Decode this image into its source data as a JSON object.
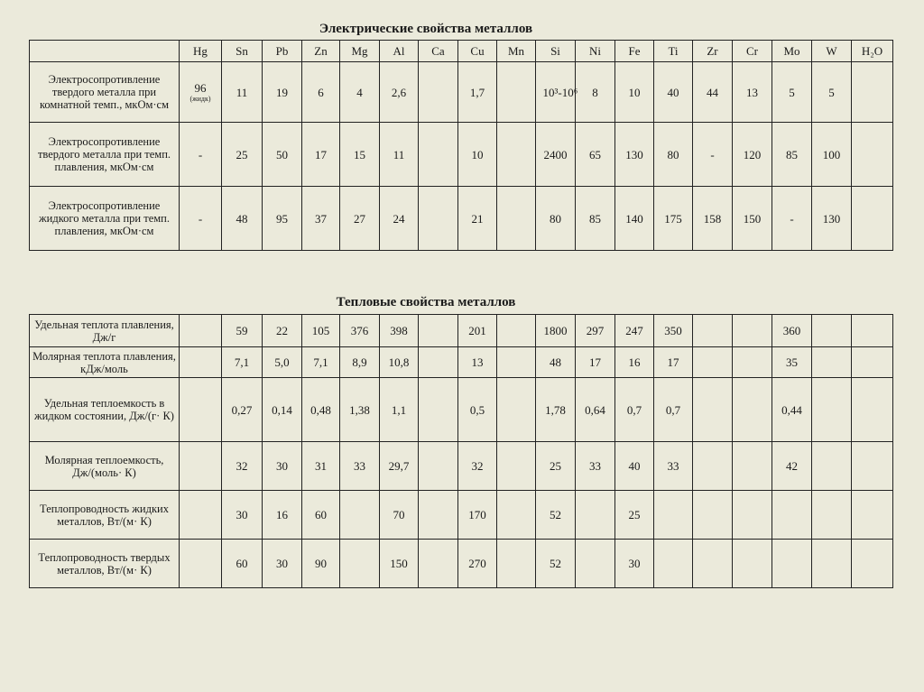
{
  "electrical": {
    "title": "Электрические свойства металлов",
    "columns": [
      "Hg",
      "Sn",
      "Pb",
      "Zn",
      "Mg",
      "Al",
      "Ca",
      "Cu",
      "Mn",
      "Si",
      "Ni",
      "Fe",
      "Ti",
      "Zr",
      "Cr",
      "Mo",
      "W",
      "H₂O"
    ],
    "rows": [
      {
        "label": "Электросопротивление твердого металла при комнатной темп., мкОм·см",
        "values": [
          "96",
          "11",
          "19",
          "6",
          "4",
          "2,6",
          "",
          "1,7",
          "",
          "10³-10⁶",
          "8",
          "10",
          "40",
          "44",
          "13",
          "5",
          "5",
          ""
        ],
        "hg_note": "(жидк)"
      },
      {
        "label": "Электросопротивление твердого металла при темп. плавления, мкОм·см",
        "values": [
          "-",
          "25",
          "50",
          "17",
          "15",
          "11",
          "",
          "10",
          "",
          "2400",
          "65",
          "130",
          "80",
          "-",
          "120",
          "85",
          "100",
          ""
        ]
      },
      {
        "label": "Электросопротивление жидкого металла при темп. плавления, мкОм·см",
        "values": [
          "-",
          "48",
          "95",
          "37",
          "27",
          "24",
          "",
          "21",
          "",
          "80",
          "85",
          "140",
          "175",
          "158",
          "150",
          "-",
          "130",
          ""
        ]
      }
    ]
  },
  "thermal": {
    "title": "Тепловые свойства металлов",
    "rows": [
      {
        "label": "Удельная теплота плавления, Дж/г",
        "values": [
          "",
          "59",
          "22",
          "105",
          "376",
          "398",
          "",
          "201",
          "",
          "1800",
          "297",
          "247",
          "350",
          "",
          "",
          "360",
          "",
          ""
        ]
      },
      {
        "label": "Молярная теплота плавления, кДж/моль",
        "values": [
          "",
          "7,1",
          "5,0",
          "7,1",
          "8,9",
          "10,8",
          "",
          "13",
          "",
          "48",
          "17",
          "16",
          "17",
          "",
          "",
          "35",
          "",
          ""
        ]
      },
      {
        "label": "Удельная теплоемкость в жидком состоянии, Дж/(г· К)",
        "values": [
          "",
          "0,27",
          "0,14",
          "0,48",
          "1,38",
          "1,1",
          "",
          "0,5",
          "",
          "1,78",
          "0,64",
          "0,7",
          "0,7",
          "",
          "",
          "0,44",
          "",
          ""
        ]
      },
      {
        "label": "Молярная теплоемкость, Дж/(моль· К)",
        "values": [
          "",
          "32",
          "30",
          "31",
          "33",
          "29,7",
          "",
          "32",
          "",
          "25",
          "33",
          "40",
          "33",
          "",
          "",
          "42",
          "",
          ""
        ]
      },
      {
        "label": "Теплопроводность жидких металлов, Вт/(м· К)",
        "values": [
          "",
          "30",
          "16",
          "60",
          "",
          "70",
          "",
          "170",
          "",
          "52",
          "",
          "25",
          "",
          "",
          "",
          "",
          "",
          ""
        ]
      },
      {
        "label": "Теплопроводность твердых металлов, Вт/(м· К)",
        "values": [
          "",
          "60",
          "30",
          "90",
          "",
          "150",
          "",
          "270",
          "",
          "52",
          "",
          "30",
          "",
          "",
          "",
          "",
          "",
          ""
        ]
      }
    ]
  }
}
